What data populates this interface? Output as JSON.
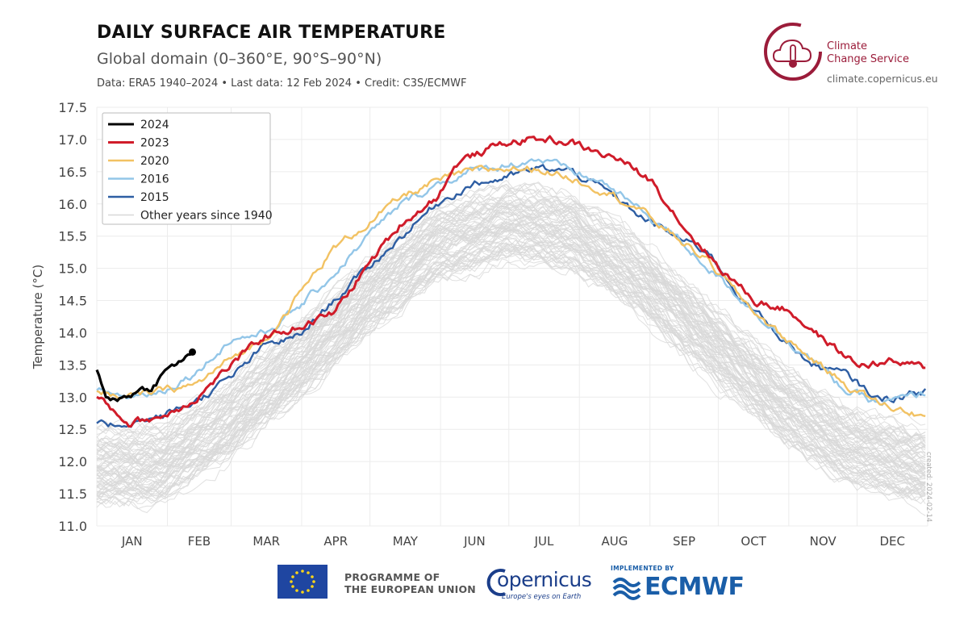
{
  "header": {
    "title": "DAILY SURFACE AIR TEMPERATURE",
    "subtitle": "Global domain (0–360°E, 90°S–90°N)",
    "credit": "Data: ERA5 1940–2024 • Last data: 12 Feb 2024 • Credit: C3S/ECMWF"
  },
  "brand": {
    "name_line1": "Climate",
    "name_line2": "Change Service",
    "url": "climate.copernicus.eu",
    "color": "#9b1c3a"
  },
  "side_note": "created: 2024-02-14",
  "footer": {
    "eu_line1": "PROGRAMME OF",
    "eu_line2": "THE EUROPEAN UNION",
    "copernicus": "opernicus",
    "copernicus_tagline": "Europe's eyes on Earth",
    "implemented_by": "IMPLEMENTED BY",
    "ecmwf": "ECMWF"
  },
  "chart_data": {
    "type": "line",
    "title": "DAILY SURFACE AIR TEMPERATURE",
    "xlabel": "",
    "ylabel": "Temperature (°C)",
    "ylim": [
      11.0,
      17.5
    ],
    "yticks": [
      "11.0",
      "11.5",
      "12.0",
      "12.5",
      "13.0",
      "13.5",
      "14.0",
      "14.5",
      "15.0",
      "15.5",
      "16.0",
      "16.5",
      "17.0",
      "17.5"
    ],
    "months": [
      "JAN",
      "FEB",
      "MAR",
      "APR",
      "MAY",
      "JUN",
      "JUL",
      "AUG",
      "SEP",
      "OCT",
      "NOV",
      "DEC"
    ],
    "grid": true,
    "legend_position": "top-left",
    "legend": [
      "2024",
      "2023",
      "2020",
      "2016",
      "2015",
      "Other years since 1940"
    ],
    "series": [
      {
        "name": "2024",
        "color": "#000000",
        "width": 3.2,
        "x": [
          1,
          5,
          10,
          15,
          20,
          25,
          30,
          35,
          40,
          43
        ],
        "y": [
          13.4,
          13.05,
          12.95,
          13.05,
          13.1,
          13.15,
          13.35,
          13.5,
          13.6,
          13.7
        ]
      },
      {
        "name": "2023",
        "color": "#d01c2a",
        "width": 3,
        "x": [
          1,
          15,
          30,
          45,
          60,
          75,
          90,
          105,
          120,
          135,
          150,
          160,
          170,
          180,
          190,
          200,
          210,
          220,
          230,
          245,
          260,
          275,
          290,
          305,
          320,
          335,
          350,
          365
        ],
        "y": [
          13.0,
          12.6,
          12.7,
          13.0,
          13.5,
          13.95,
          14.1,
          14.3,
          15.05,
          15.7,
          16.1,
          16.65,
          16.8,
          16.95,
          17.0,
          17.0,
          16.95,
          16.8,
          16.7,
          16.35,
          15.6,
          15.0,
          14.5,
          14.35,
          13.9,
          13.5,
          13.55,
          13.45
        ]
      },
      {
        "name": "2020",
        "color": "#f2c263",
        "width": 2.4,
        "x": [
          1,
          15,
          30,
          45,
          60,
          75,
          90,
          105,
          120,
          135,
          150,
          165,
          180,
          195,
          210,
          225,
          240,
          255,
          270,
          285,
          300,
          315,
          330,
          345,
          365
        ],
        "y": [
          13.1,
          13.0,
          13.1,
          13.2,
          13.6,
          13.9,
          14.6,
          15.3,
          15.7,
          16.1,
          16.35,
          16.5,
          16.55,
          16.55,
          16.4,
          16.2,
          15.9,
          15.5,
          15.1,
          14.5,
          14.0,
          13.6,
          13.2,
          12.9,
          12.7
        ]
      },
      {
        "name": "2016",
        "color": "#93c6e8",
        "width": 2.4,
        "x": [
          1,
          15,
          30,
          45,
          60,
          75,
          90,
          105,
          120,
          135,
          150,
          165,
          180,
          195,
          210,
          225,
          240,
          255,
          270,
          285,
          300,
          315,
          330,
          345,
          365
        ],
        "y": [
          13.1,
          13.0,
          13.1,
          13.4,
          13.9,
          14.0,
          14.4,
          14.9,
          15.5,
          16.0,
          16.3,
          16.5,
          16.6,
          16.7,
          16.5,
          16.3,
          15.9,
          15.5,
          15.0,
          14.5,
          14.0,
          13.6,
          13.1,
          12.9,
          13.05
        ]
      },
      {
        "name": "2015",
        "color": "#2e5ea3",
        "width": 2.4,
        "x": [
          1,
          15,
          30,
          45,
          60,
          75,
          90,
          105,
          120,
          135,
          150,
          165,
          180,
          195,
          210,
          225,
          240,
          255,
          270,
          285,
          300,
          315,
          330,
          345,
          365
        ],
        "y": [
          12.55,
          12.6,
          12.7,
          12.95,
          13.3,
          13.8,
          13.95,
          14.5,
          15.0,
          15.5,
          16.0,
          16.3,
          16.4,
          16.55,
          16.5,
          16.2,
          15.8,
          15.5,
          15.25,
          14.5,
          14.0,
          13.5,
          13.35,
          12.95,
          13.1
        ]
      }
    ],
    "background_years": {
      "name": "Other years since 1940",
      "color": "#d8d8d8",
      "count": 80,
      "mean_x": [
        1,
        30,
        60,
        90,
        120,
        150,
        180,
        210,
        240,
        270,
        300,
        330,
        365
      ],
      "mean_y": [
        11.95,
        12.0,
        12.7,
        13.6,
        14.6,
        15.4,
        15.75,
        15.6,
        14.9,
        13.95,
        13.0,
        12.3,
        11.95
      ]
    }
  }
}
